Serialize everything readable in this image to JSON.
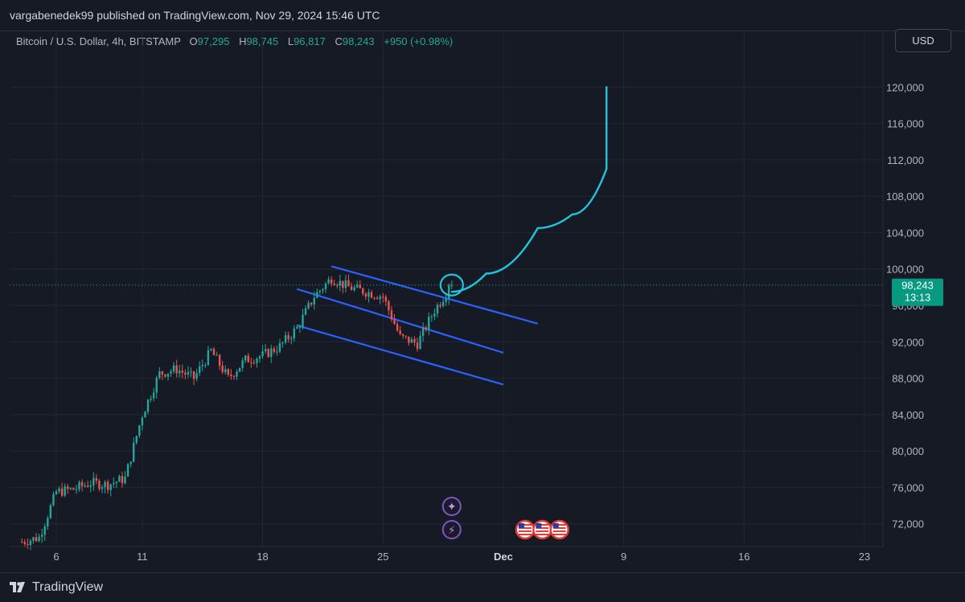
{
  "header": {
    "publisher_line": "vargabenedek99 published on TradingView.com, Nov 29, 2024 15:46 UTC"
  },
  "legend": {
    "symbol": "Bitcoin / U.S. Dollar, 4h, BITSTAMP",
    "o_label": "O",
    "o_value": "97,295",
    "h_label": "H",
    "h_value": "98,745",
    "l_label": "L",
    "l_value": "96,817",
    "c_label": "C",
    "c_value": "98,243",
    "change": "+950 (+0.98%)"
  },
  "currency_button": "USD",
  "price_tag": {
    "price": "98,243",
    "countdown": "13:13"
  },
  "footer": {
    "brand": "TradingView"
  },
  "colors": {
    "background": "#161a25",
    "grid": "#232733",
    "up": "#26a69a",
    "down": "#ef5350",
    "channel": "#2962ff",
    "drawing": "#22c3dc",
    "price_tag": "#089981",
    "event_purple": "#7e57c2"
  },
  "icons": [
    "star-event-icon",
    "lightning-event-icon",
    "us-flag-event-icon"
  ],
  "chart_data": {
    "type": "candlestick",
    "title": "",
    "x_tick_labels": [
      "6",
      "11",
      "18",
      "25",
      "Dec",
      "9",
      "16",
      "23"
    ],
    "y_tick_labels": [
      "120,000",
      "116,000",
      "112,000",
      "108,000",
      "104,000",
      "100,000",
      "96,000",
      "92,000",
      "88,000",
      "84,000",
      "80,000",
      "76,000",
      "72,000"
    ],
    "ylim": [
      69500,
      122500
    ],
    "y_scale": "linear",
    "grid": true,
    "last_price": 98243,
    "price_path": [
      [
        "Nov 4",
        70000
      ],
      [
        "Nov 5",
        70500
      ],
      [
        "Nov 6",
        75500
      ],
      [
        "Nov 7",
        75800
      ],
      [
        "Nov 8",
        76500
      ],
      [
        "Nov 9",
        76300
      ],
      [
        "Nov 10",
        77000
      ],
      [
        "Nov 11",
        84000
      ],
      [
        "Nov 12",
        88500
      ],
      [
        "Nov 13",
        89000
      ],
      [
        "Nov 14",
        88000
      ],
      [
        "Nov 15",
        91000
      ],
      [
        "Nov 16",
        88000
      ],
      [
        "Nov 17",
        90000
      ],
      [
        "Nov 18",
        90500
      ],
      [
        "Nov 19",
        91500
      ],
      [
        "Nov 20",
        93500
      ],
      [
        "Nov 21",
        97000
      ],
      [
        "Nov 22",
        99000
      ],
      [
        "Nov 23",
        98000
      ],
      [
        "Nov 24",
        97500
      ],
      [
        "Nov 25",
        97000
      ],
      [
        "Nov 26",
        92500
      ],
      [
        "Nov 27",
        91800
      ],
      [
        "Nov 28",
        95500
      ],
      [
        "Nov 29",
        98243
      ]
    ],
    "channel_lines": [
      {
        "from": [
          "Nov 22",
          100300
        ],
        "to": [
          "Dec 4",
          94000
        ]
      },
      {
        "from": [
          "Nov 20",
          97800
        ],
        "to": [
          "Dec 2",
          90800
        ]
      },
      {
        "from": [
          "Nov 20",
          93800
        ],
        "to": [
          "Dec 2",
          87300
        ]
      }
    ],
    "projection_path": [
      [
        "Nov 29",
        97500
      ],
      [
        "Dec 1",
        99500
      ],
      [
        "Dec 4",
        104500
      ],
      [
        "Dec 6",
        106000
      ],
      [
        "Dec 8",
        111000
      ],
      [
        "Dec 8",
        120000
      ]
    ]
  }
}
